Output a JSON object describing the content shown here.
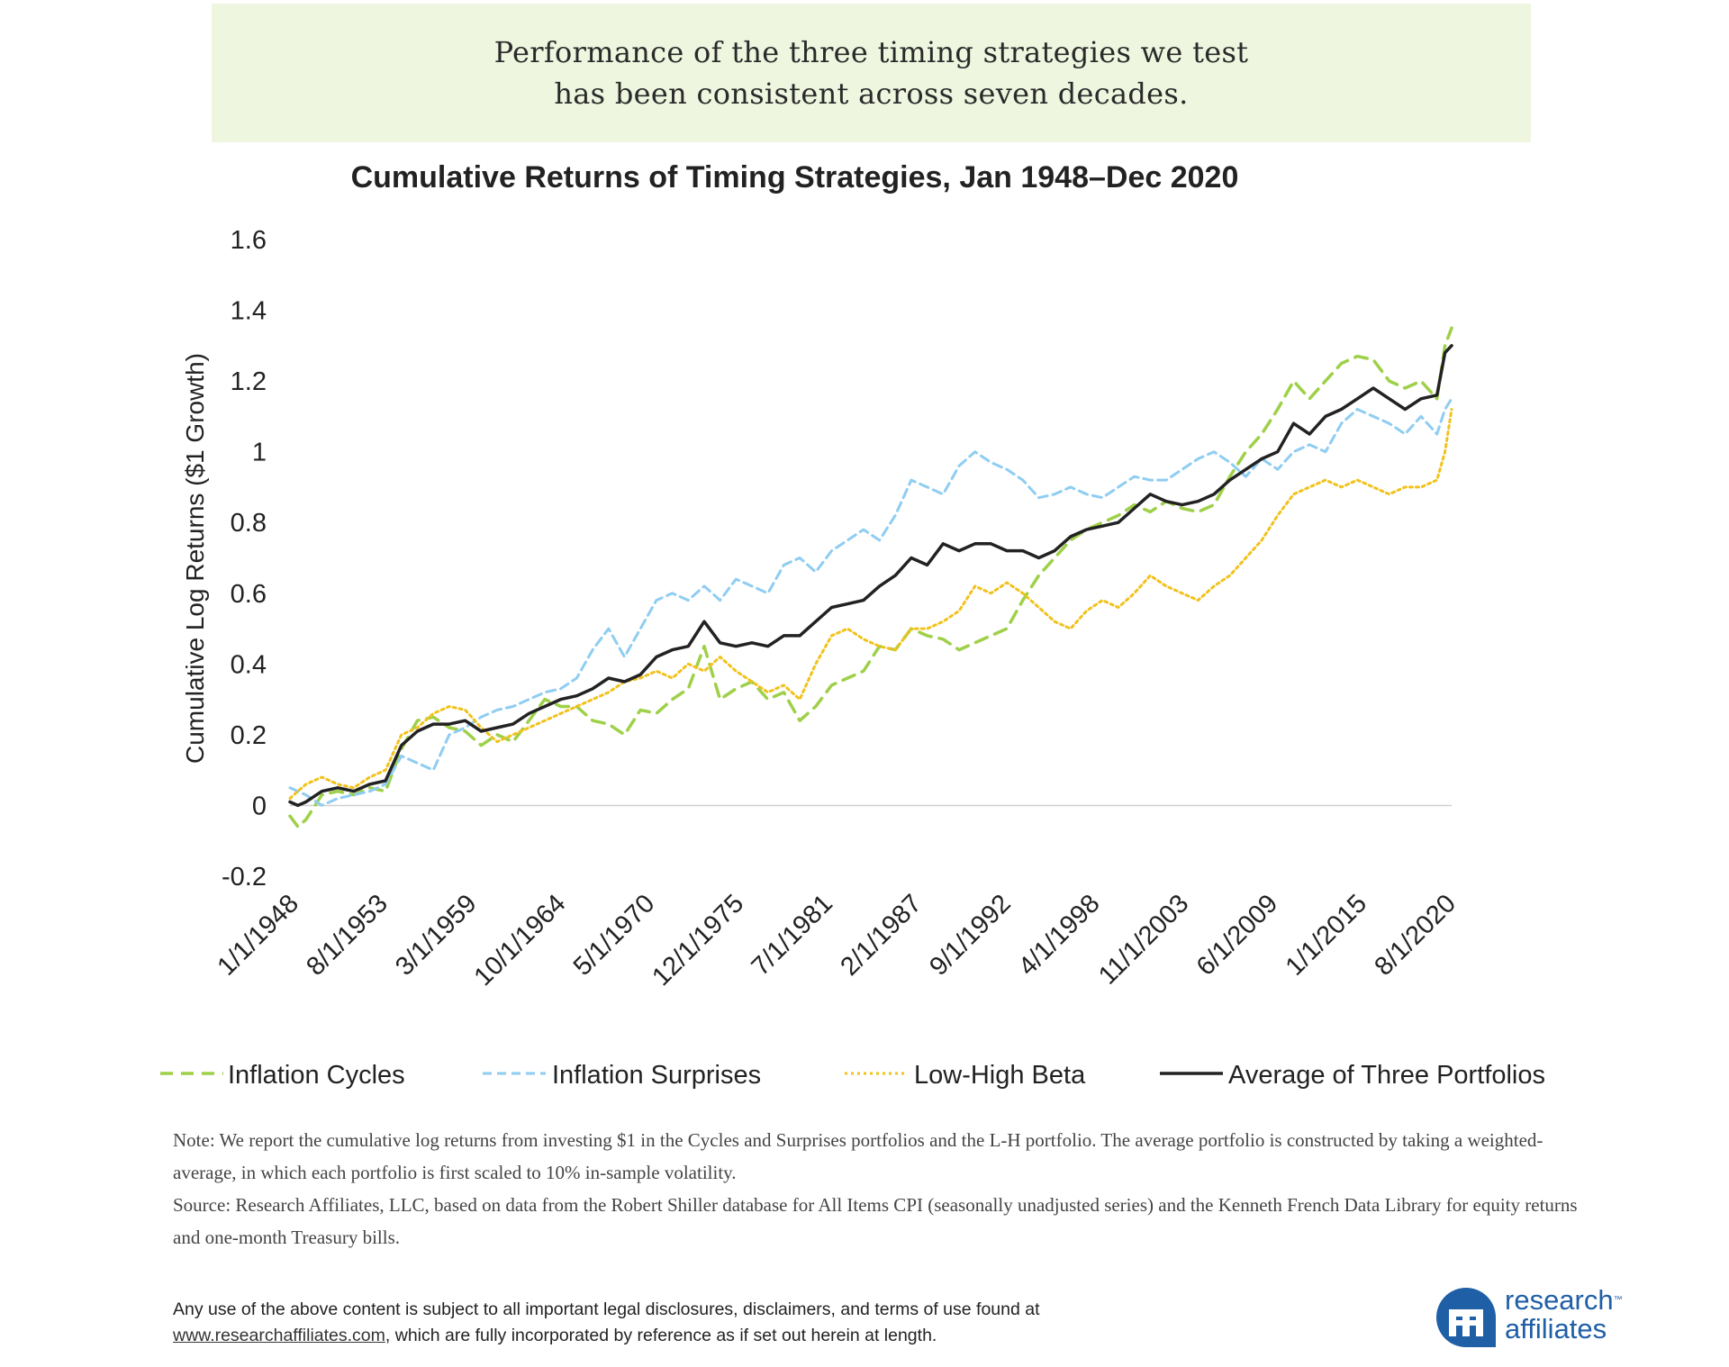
{
  "banner": {
    "line1": "Performance of the three timing strategies we test",
    "line2": "has been consistent across seven decades."
  },
  "colors": {
    "inflation_cycles": "#9ed048",
    "inflation_surprises": "#8fcdf2",
    "low_high_beta": "#f2c21b",
    "average": "#222222",
    "zero_line": "#d0d0d0",
    "logo": "#1f5fa6"
  },
  "chart_data": {
    "type": "line",
    "title": "Cumulative Returns of Timing Strategies, Jan 1948–Dec 2020",
    "xlabel": "",
    "ylabel": "Cumulative Log Returns ($1 Growth)",
    "ylim": [
      -0.2,
      1.6
    ],
    "yticks": [
      "-0.2",
      "0",
      "0.2",
      "0.4",
      "0.6",
      "0.8",
      "1",
      "1.2",
      "1.4",
      "1.6"
    ],
    "xlim": [
      1948.0,
      2020.92
    ],
    "xticks": [
      "1/1/1948",
      "8/1/1953",
      "3/1/1959",
      "10/1/1964",
      "5/1/1970",
      "12/1/1975",
      "7/1/1981",
      "2/1/1987",
      "9/1/1992",
      "4/1/1998",
      "11/1/2003",
      "6/1/2009",
      "1/1/2015",
      "8/1/2020"
    ],
    "grid": false,
    "legend_position": "bottom",
    "series": [
      {
        "name": "Inflation Cycles",
        "style": "dashed",
        "x": [
          1948.0,
          1948.5,
          1949.0,
          1950.0,
          1951.0,
          1952.0,
          1953.0,
          1954.0,
          1955.0,
          1956.0,
          1957.0,
          1958.0,
          1959.0,
          1960.0,
          1961.0,
          1962.0,
          1963.0,
          1964.0,
          1965.0,
          1966.0,
          1967.0,
          1968.0,
          1969.0,
          1970.0,
          1971.0,
          1972.0,
          1973.0,
          1974.0,
          1975.0,
          1976.0,
          1977.0,
          1978.0,
          1979.0,
          1980.0,
          1981.0,
          1982.0,
          1983.0,
          1984.0,
          1985.0,
          1986.0,
          1987.0,
          1988.0,
          1989.0,
          1990.0,
          1991.0,
          1992.0,
          1993.0,
          1994.0,
          1995.0,
          1996.0,
          1997.0,
          1998.0,
          1999.0,
          2000.0,
          2001.0,
          2002.0,
          2003.0,
          2004.0,
          2005.0,
          2006.0,
          2007.0,
          2008.0,
          2009.0,
          2010.0,
          2011.0,
          2012.0,
          2013.0,
          2014.0,
          2015.0,
          2016.0,
          2017.0,
          2018.0,
          2019.0,
          2020.0,
          2020.5,
          2020.92
        ],
        "y": [
          -0.03,
          -0.06,
          -0.04,
          0.03,
          0.04,
          0.03,
          0.05,
          0.04,
          0.16,
          0.24,
          0.25,
          0.22,
          0.21,
          0.17,
          0.2,
          0.18,
          0.24,
          0.3,
          0.28,
          0.28,
          0.24,
          0.23,
          0.2,
          0.27,
          0.26,
          0.3,
          0.33,
          0.45,
          0.3,
          0.33,
          0.35,
          0.3,
          0.32,
          0.24,
          0.28,
          0.34,
          0.36,
          0.38,
          0.45,
          0.44,
          0.5,
          0.48,
          0.47,
          0.44,
          0.46,
          0.48,
          0.5,
          0.58,
          0.65,
          0.7,
          0.75,
          0.78,
          0.8,
          0.82,
          0.85,
          0.83,
          0.86,
          0.84,
          0.83,
          0.85,
          0.93,
          1.0,
          1.05,
          1.12,
          1.2,
          1.15,
          1.2,
          1.25,
          1.27,
          1.26,
          1.2,
          1.18,
          1.2,
          1.15,
          1.3,
          1.35
        ]
      },
      {
        "name": "Inflation Surprises",
        "style": "dashed",
        "x": [
          1948.0,
          1948.5,
          1949.0,
          1950.0,
          1951.0,
          1952.0,
          1953.0,
          1954.0,
          1955.0,
          1956.0,
          1957.0,
          1958.0,
          1959.0,
          1960.0,
          1961.0,
          1962.0,
          1963.0,
          1964.0,
          1965.0,
          1966.0,
          1967.0,
          1968.0,
          1969.0,
          1970.0,
          1971.0,
          1972.0,
          1973.0,
          1974.0,
          1975.0,
          1976.0,
          1977.0,
          1978.0,
          1979.0,
          1980.0,
          1981.0,
          1982.0,
          1983.0,
          1984.0,
          1985.0,
          1986.0,
          1987.0,
          1988.0,
          1989.0,
          1990.0,
          1991.0,
          1992.0,
          1993.0,
          1994.0,
          1995.0,
          1996.0,
          1997.0,
          1998.0,
          1999.0,
          2000.0,
          2001.0,
          2002.0,
          2003.0,
          2004.0,
          2005.0,
          2006.0,
          2007.0,
          2008.0,
          2009.0,
          2010.0,
          2011.0,
          2012.0,
          2013.0,
          2014.0,
          2015.0,
          2016.0,
          2017.0,
          2018.0,
          2019.0,
          2020.0,
          2020.5,
          2020.92
        ],
        "y": [
          0.05,
          0.04,
          0.03,
          0.0,
          0.02,
          0.03,
          0.04,
          0.06,
          0.14,
          0.12,
          0.1,
          0.2,
          0.22,
          0.25,
          0.27,
          0.28,
          0.3,
          0.32,
          0.33,
          0.36,
          0.44,
          0.5,
          0.42,
          0.5,
          0.58,
          0.6,
          0.58,
          0.62,
          0.58,
          0.64,
          0.62,
          0.6,
          0.68,
          0.7,
          0.66,
          0.72,
          0.75,
          0.78,
          0.75,
          0.82,
          0.92,
          0.9,
          0.88,
          0.96,
          1.0,
          0.97,
          0.95,
          0.92,
          0.87,
          0.88,
          0.9,
          0.88,
          0.87,
          0.9,
          0.93,
          0.92,
          0.92,
          0.95,
          0.98,
          1.0,
          0.97,
          0.93,
          0.98,
          0.95,
          1.0,
          1.02,
          1.0,
          1.08,
          1.12,
          1.1,
          1.08,
          1.05,
          1.1,
          1.05,
          1.12,
          1.15
        ]
      },
      {
        "name": "Low-High Beta",
        "style": "dotted",
        "x": [
          1948.0,
          1948.5,
          1949.0,
          1950.0,
          1951.0,
          1952.0,
          1953.0,
          1954.0,
          1955.0,
          1956.0,
          1957.0,
          1958.0,
          1959.0,
          1960.0,
          1961.0,
          1962.0,
          1963.0,
          1964.0,
          1965.0,
          1966.0,
          1967.0,
          1968.0,
          1969.0,
          1970.0,
          1971.0,
          1972.0,
          1973.0,
          1974.0,
          1975.0,
          1976.0,
          1977.0,
          1978.0,
          1979.0,
          1980.0,
          1981.0,
          1982.0,
          1983.0,
          1984.0,
          1985.0,
          1986.0,
          1987.0,
          1988.0,
          1989.0,
          1990.0,
          1991.0,
          1992.0,
          1993.0,
          1994.0,
          1995.0,
          1996.0,
          1997.0,
          1998.0,
          1999.0,
          2000.0,
          2001.0,
          2002.0,
          2003.0,
          2004.0,
          2005.0,
          2006.0,
          2007.0,
          2008.0,
          2009.0,
          2010.0,
          2011.0,
          2012.0,
          2013.0,
          2014.0,
          2015.0,
          2016.0,
          2017.0,
          2018.0,
          2019.0,
          2020.0,
          2020.5,
          2020.92
        ],
        "y": [
          0.02,
          0.04,
          0.06,
          0.08,
          0.06,
          0.05,
          0.08,
          0.1,
          0.2,
          0.22,
          0.26,
          0.28,
          0.27,
          0.22,
          0.18,
          0.2,
          0.22,
          0.24,
          0.26,
          0.28,
          0.3,
          0.32,
          0.35,
          0.36,
          0.38,
          0.36,
          0.4,
          0.38,
          0.42,
          0.38,
          0.35,
          0.32,
          0.34,
          0.3,
          0.4,
          0.48,
          0.5,
          0.47,
          0.45,
          0.44,
          0.5,
          0.5,
          0.52,
          0.55,
          0.62,
          0.6,
          0.63,
          0.6,
          0.56,
          0.52,
          0.5,
          0.55,
          0.58,
          0.56,
          0.6,
          0.65,
          0.62,
          0.6,
          0.58,
          0.62,
          0.65,
          0.7,
          0.75,
          0.82,
          0.88,
          0.9,
          0.92,
          0.9,
          0.92,
          0.9,
          0.88,
          0.9,
          0.9,
          0.92,
          1.0,
          1.12
        ]
      },
      {
        "name": "Average of Three Portfolios",
        "style": "solid",
        "x": [
          1948.0,
          1948.5,
          1949.0,
          1950.0,
          1951.0,
          1952.0,
          1953.0,
          1954.0,
          1955.0,
          1956.0,
          1957.0,
          1958.0,
          1959.0,
          1960.0,
          1961.0,
          1962.0,
          1963.0,
          1964.0,
          1965.0,
          1966.0,
          1967.0,
          1968.0,
          1969.0,
          1970.0,
          1971.0,
          1972.0,
          1973.0,
          1974.0,
          1975.0,
          1976.0,
          1977.0,
          1978.0,
          1979.0,
          1980.0,
          1981.0,
          1982.0,
          1983.0,
          1984.0,
          1985.0,
          1986.0,
          1987.0,
          1988.0,
          1989.0,
          1990.0,
          1991.0,
          1992.0,
          1993.0,
          1994.0,
          1995.0,
          1996.0,
          1997.0,
          1998.0,
          1999.0,
          2000.0,
          2001.0,
          2002.0,
          2003.0,
          2004.0,
          2005.0,
          2006.0,
          2007.0,
          2008.0,
          2009.0,
          2010.0,
          2011.0,
          2012.0,
          2013.0,
          2014.0,
          2015.0,
          2016.0,
          2017.0,
          2018.0,
          2019.0,
          2020.0,
          2020.5,
          2020.92
        ],
        "y": [
          0.01,
          0.0,
          0.01,
          0.04,
          0.05,
          0.04,
          0.06,
          0.07,
          0.17,
          0.21,
          0.23,
          0.23,
          0.24,
          0.21,
          0.22,
          0.23,
          0.26,
          0.28,
          0.3,
          0.31,
          0.33,
          0.36,
          0.35,
          0.37,
          0.42,
          0.44,
          0.45,
          0.52,
          0.46,
          0.45,
          0.46,
          0.45,
          0.48,
          0.48,
          0.52,
          0.56,
          0.57,
          0.58,
          0.62,
          0.65,
          0.7,
          0.68,
          0.74,
          0.72,
          0.74,
          0.74,
          0.72,
          0.72,
          0.7,
          0.72,
          0.76,
          0.78,
          0.79,
          0.8,
          0.84,
          0.88,
          0.86,
          0.85,
          0.86,
          0.88,
          0.92,
          0.95,
          0.98,
          1.0,
          1.08,
          1.05,
          1.1,
          1.12,
          1.15,
          1.18,
          1.15,
          1.12,
          1.15,
          1.16,
          1.28,
          1.3
        ]
      }
    ]
  },
  "note": {
    "line1": "Note: We report the cumulative log returns from investing $1 in the Cycles and Surprises portfolios and the L-H portfolio. The average portfolio is constructed by taking a weighted-average, in which each portfolio is first scaled to 10% in-sample volatility.",
    "line2": "Source: Research Affiliates, LLC, based on data from the Robert Shiller database for All Items CPI (seasonally unadjusted series) and the Kenneth French Data Library for equity returns and one-month Treasury bills."
  },
  "disclaimer": {
    "line1": "Any use of the above content is subject to all important legal disclosures, disclaimers, and terms of use found at",
    "link": "www.researchaffiliates.com",
    "line2_rest": ", which are fully incorporated by reference as if set out herein at length."
  },
  "logo": {
    "line1": "research",
    "tm": "™",
    "line2": "affiliates",
    "icon": "ra-logo-icon"
  }
}
